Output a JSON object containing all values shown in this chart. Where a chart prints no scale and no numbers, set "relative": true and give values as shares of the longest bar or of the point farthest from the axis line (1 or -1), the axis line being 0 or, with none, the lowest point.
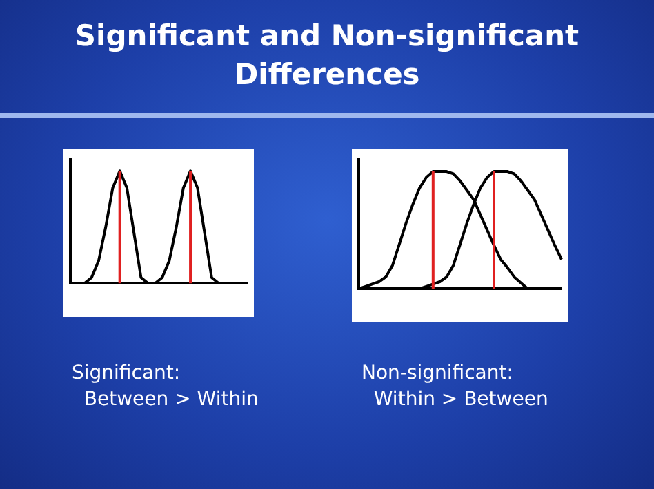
{
  "chart_data": [
    {
      "type": "line",
      "title": "Significant and Non-significant Differences",
      "xlabel": "Significant:\n  Between > Within",
      "relative": true,
      "grid": false,
      "legend": false,
      "marker": "none",
      "categories": [
        null,
        null,
        null,
        null,
        null,
        null,
        null,
        null,
        null,
        null,
        null,
        null,
        null,
        null,
        null,
        null,
        null,
        null,
        null,
        null,
        null,
        null,
        null,
        null,
        null,
        null
      ],
      "series": [
        {
          "color": "#000000",
          "values": [
            null,
            null,
            0,
            0.05,
            0.2,
            0.5,
            0.85,
            1,
            0.85,
            0.45,
            0.05,
            0,
            null,
            null,
            null,
            null,
            null,
            null,
            null,
            null,
            null,
            null,
            null,
            null,
            null,
            null
          ]
        },
        {
          "color": "#000000",
          "values": [
            null,
            null,
            null,
            null,
            null,
            null,
            null,
            null,
            null,
            null,
            null,
            null,
            0,
            0.05,
            0.2,
            0.5,
            0.85,
            1,
            0.85,
            0.45,
            0.05,
            0,
            null,
            null,
            null,
            null
          ]
        }
      ]
    },
    {
      "type": "line",
      "xlabel": "Non-significant:\n  Within > Between",
      "relative": true,
      "grid": false,
      "legend": false,
      "marker": "none",
      "categories": [
        null,
        null,
        null,
        null,
        null,
        null,
        null,
        null,
        null,
        null,
        null,
        null,
        null,
        null,
        null,
        null,
        null,
        null,
        null,
        null,
        null,
        null,
        null,
        null,
        null,
        null,
        null,
        null,
        null,
        null,
        null
      ],
      "series": [
        {
          "color": "#000000",
          "values": [
            0,
            0.02,
            0.04,
            0.06,
            0.1,
            0.2,
            0.38,
            0.56,
            0.72,
            0.86,
            0.95,
            1,
            1,
            1,
            0.98,
            0.92,
            0.84,
            0.76,
            0.63,
            0.5,
            0.37,
            0.25,
            0.18,
            0.1,
            0.05,
            0,
            null,
            null,
            null,
            null,
            null
          ]
        },
        {
          "color": "#000000",
          "values": [
            null,
            null,
            null,
            null,
            null,
            null,
            null,
            null,
            null,
            0,
            0.02,
            0.04,
            0.06,
            0.1,
            0.2,
            0.38,
            0.56,
            0.72,
            0.86,
            0.95,
            1,
            1,
            1,
            0.98,
            0.92,
            0.84,
            0.76,
            0.63,
            0.5,
            0.37,
            0.25
          ]
        }
      ]
    }
  ]
}
